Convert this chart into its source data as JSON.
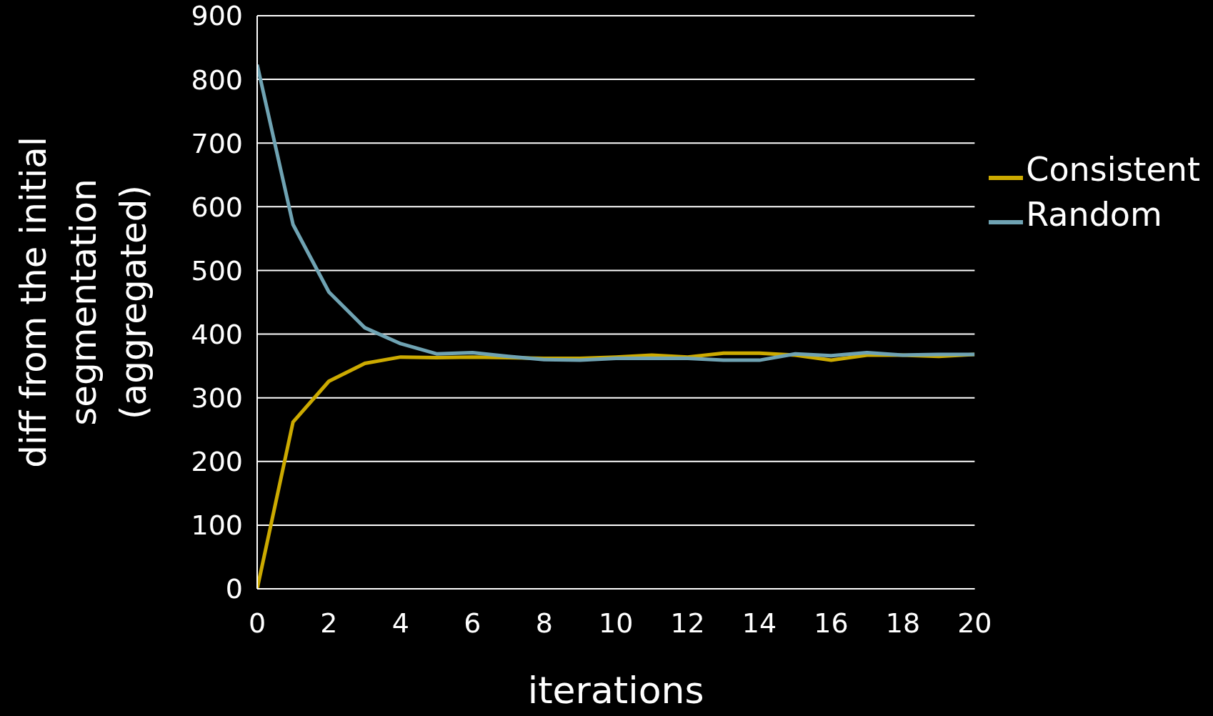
{
  "chart_data": {
    "type": "line",
    "xlabel": "iterations",
    "ylabel": "diff from the initial segmentation (aggregated)",
    "x": [
      0,
      1,
      2,
      3,
      4,
      5,
      6,
      7,
      8,
      9,
      10,
      11,
      12,
      13,
      14,
      15,
      16,
      17,
      18,
      19,
      20
    ],
    "series": [
      {
        "name": "Consistent",
        "color": "#ccaa00",
        "values": [
          0,
          262,
          326,
          354,
          364,
          363,
          364,
          363,
          362,
          362,
          364,
          367,
          364,
          370,
          370,
          367,
          359,
          367,
          367,
          365,
          368
        ]
      },
      {
        "name": "Random",
        "color": "#6fa3b3",
        "values": [
          823,
          572,
          466,
          410,
          385,
          369,
          371,
          365,
          360,
          359,
          362,
          362,
          362,
          359,
          359,
          369,
          366,
          371,
          367,
          368,
          368
        ]
      }
    ],
    "xlim": [
      0,
      20
    ],
    "xticks": [
      0,
      2,
      4,
      6,
      8,
      10,
      12,
      14,
      16,
      18,
      20
    ],
    "ylim": [
      0,
      900
    ],
    "yticks": [
      0,
      100,
      200,
      300,
      400,
      500,
      600,
      700,
      800,
      900
    ],
    "grid": "y",
    "legend": "right",
    "marker": "none",
    "line_style": "solid"
  }
}
